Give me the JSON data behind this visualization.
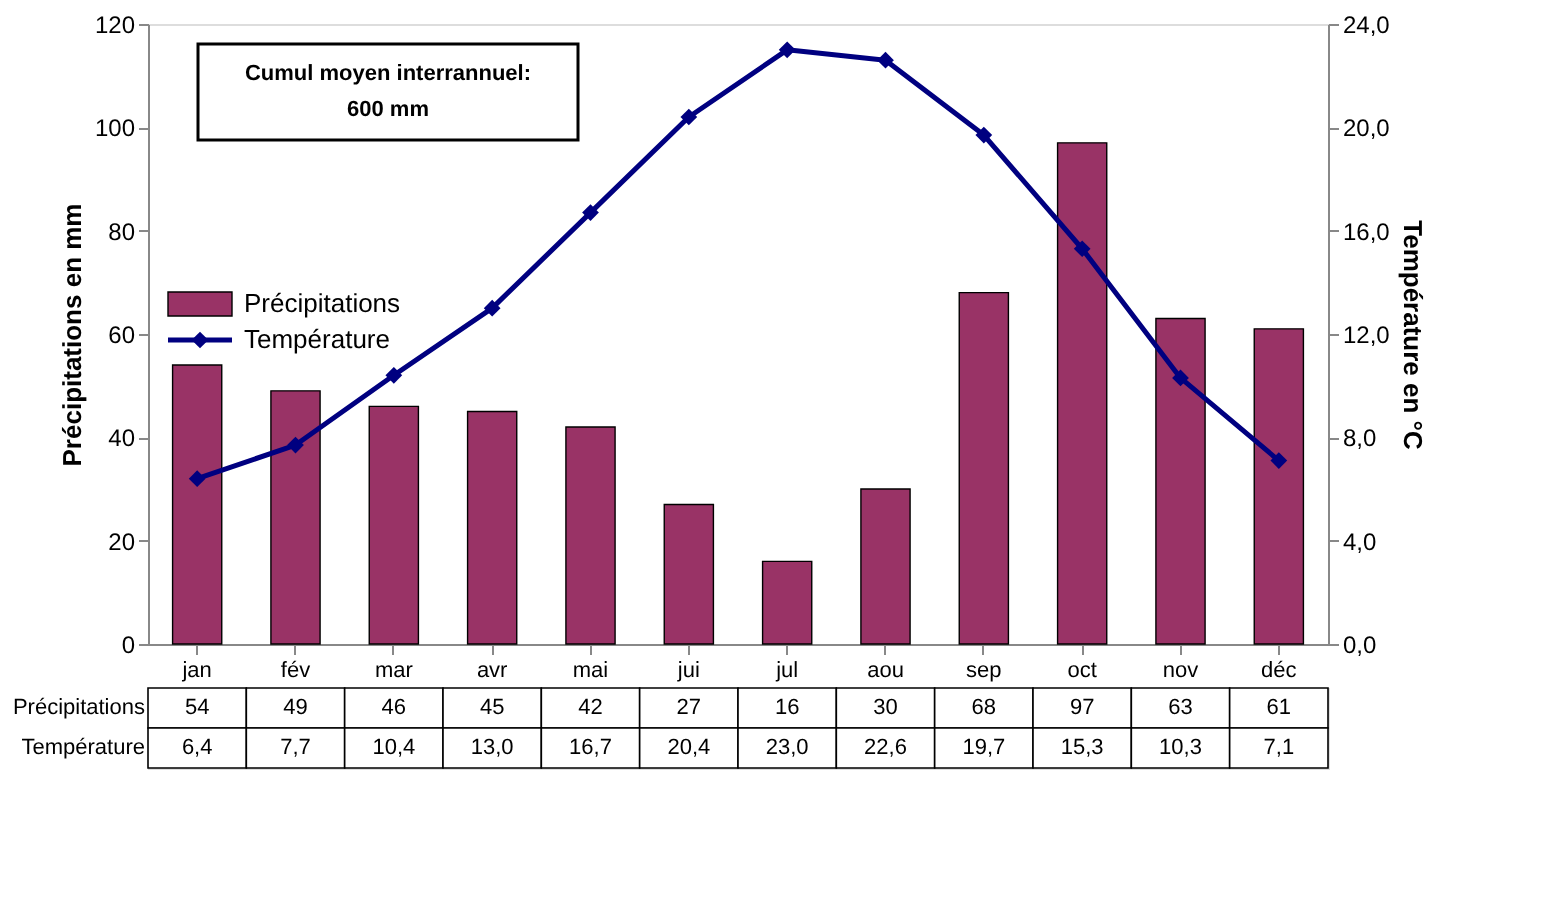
{
  "chart_data": {
    "type": "bar",
    "categories": [
      "jan",
      "fév",
      "mar",
      "avr",
      "mai",
      "jui",
      "jul",
      "aou",
      "sep",
      "oct",
      "nov",
      "déc"
    ],
    "series": [
      {
        "name": "Précipitations",
        "color": "#993366",
        "values": [
          54,
          49,
          46,
          45,
          42,
          27,
          16,
          30,
          68,
          97,
          63,
          61
        ],
        "value_labels": [
          "54",
          "49",
          "46",
          "45",
          "42",
          "27",
          "16",
          "30",
          "68",
          "97",
          "63",
          "61"
        ]
      },
      {
        "name": "Température",
        "type": "line",
        "axis": "y2",
        "color": "#000080",
        "values": [
          6.4,
          7.7,
          10.4,
          13.0,
          16.7,
          20.4,
          23.0,
          22.6,
          19.7,
          15.3,
          10.3,
          7.1
        ],
        "value_labels": [
          "6,4",
          "7,7",
          "10,4",
          "13,0",
          "16,7",
          "20,4",
          "23,0",
          "22,6",
          "19,7",
          "15,3",
          "10,3",
          "7,1"
        ]
      }
    ],
    "ylabel": "Précipitations en mm",
    "y2label": "Température en °C",
    "ylim": [
      0,
      120
    ],
    "yticks": [
      0,
      20,
      40,
      60,
      80,
      100,
      120
    ],
    "y2lim": [
      0,
      24
    ],
    "y2ticks": [
      {
        "value": 0,
        "label": "0,0"
      },
      {
        "value": 4,
        "label": "4,0"
      },
      {
        "value": 8,
        "label": "8,0"
      },
      {
        "value": 12,
        "label": "12,0"
      },
      {
        "value": 16,
        "label": "16,0"
      },
      {
        "value": 20,
        "label": "20,0"
      },
      {
        "value": 24,
        "label": "24,0"
      }
    ],
    "annotations": [
      "Cumul moyen interrannuel:\n600 mm"
    ],
    "marker": "diamond",
    "line_style": "solid",
    "grid": false,
    "legend": "left"
  }
}
